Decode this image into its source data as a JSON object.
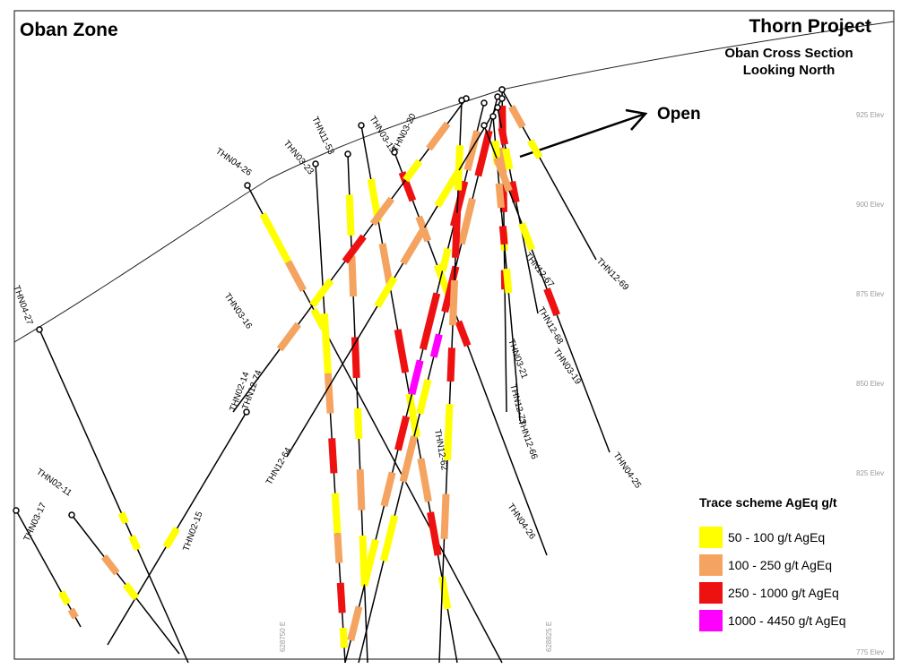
{
  "title": "Oban Zone",
  "project": "Thorn Project",
  "subtitle_lines": [
    "Oban Cross Section",
    "Looking North"
  ],
  "open_label": "Open",
  "elevation_labels": [
    "925 Elev",
    "900 Elev",
    "875 Elev",
    "850 Elev",
    "825 Elev",
    "775 Elev"
  ],
  "easting_labels": [
    "628750 E",
    "628825 E"
  ],
  "legend": {
    "title": "Trace scheme AgEq g/t",
    "items": [
      {
        "label": "50 - 100 g/t AgEq",
        "color": "#ffff00"
      },
      {
        "label": "100 - 250 g/t AgEq",
        "color": "#f4a460"
      },
      {
        "label": "250 - 1000 g/t AgEq",
        "color": "#ee1111"
      },
      {
        "label": "1000 - 4450 g/t AgEq",
        "color": "#ff00ff"
      }
    ]
  },
  "drill_holes": [
    {
      "name": "THN04-27"
    },
    {
      "name": "THN04-26"
    },
    {
      "name": "THN03-23"
    },
    {
      "name": "THN11-53"
    },
    {
      "name": "THN03-15"
    },
    {
      "name": "THN03-20"
    },
    {
      "name": "THN03-16"
    },
    {
      "name": "THN02-14"
    },
    {
      "name": "THN12-74"
    },
    {
      "name": "THN02-11"
    },
    {
      "name": "THN03-17"
    },
    {
      "name": "THN02-15"
    },
    {
      "name": "THN12-64"
    },
    {
      "name": "THN12-62"
    },
    {
      "name": "THN12-67"
    },
    {
      "name": "THN12-69"
    },
    {
      "name": "THN12-68"
    },
    {
      "name": "THN03-19"
    },
    {
      "name": "THN03-21"
    },
    {
      "name": "THN12-73"
    },
    {
      "name": "THN12-66"
    },
    {
      "name": "THN04-25"
    },
    {
      "name": "THN04-26"
    }
  ]
}
